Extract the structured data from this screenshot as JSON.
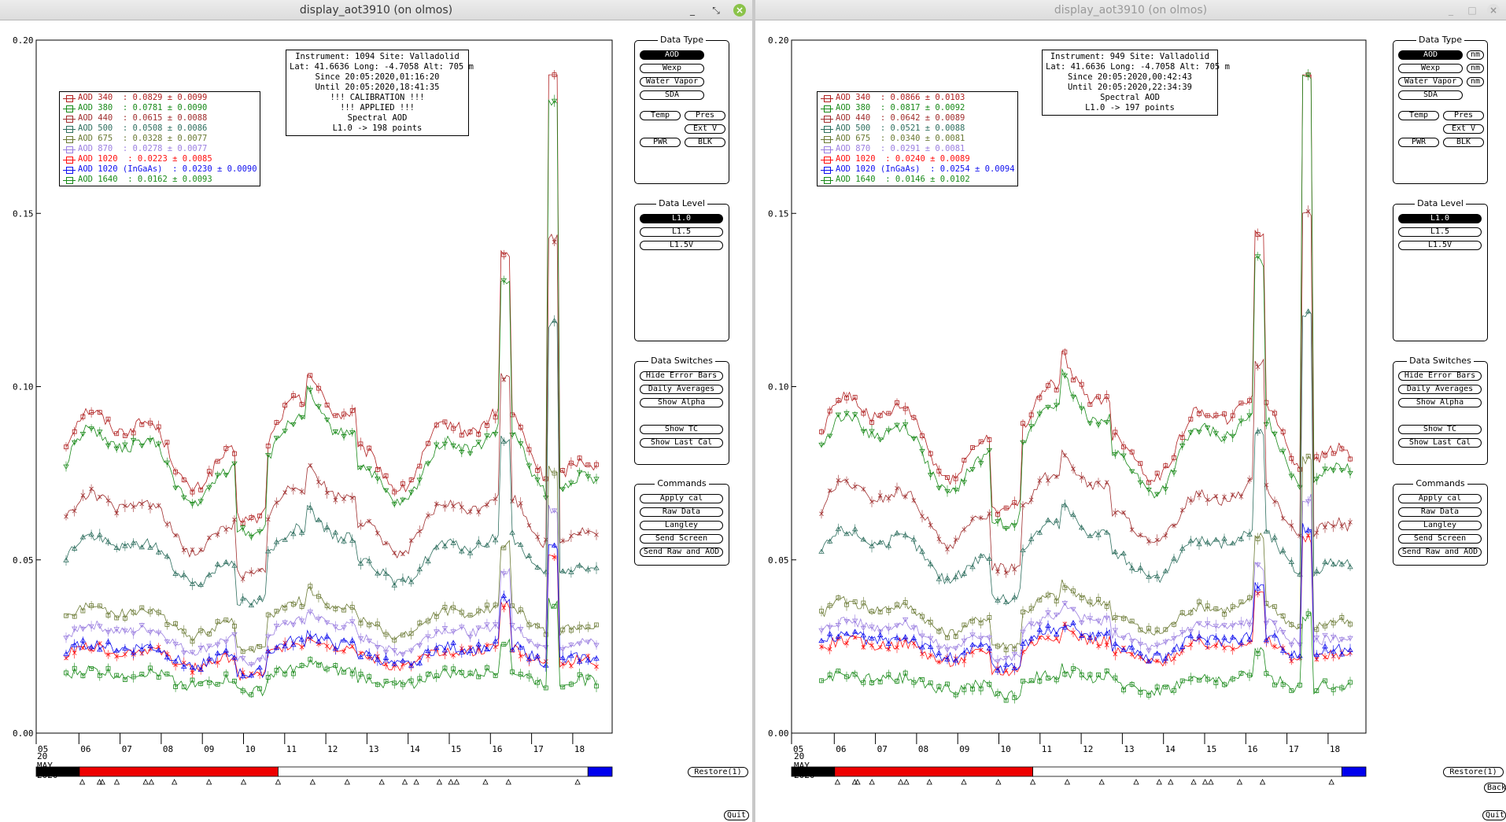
{
  "colors": {
    "aod340": "#b02020",
    "aod380": "#1a8a1a",
    "aod440": "#a03030",
    "aod500": "#2f6f5f",
    "aod675": "#6b7a35",
    "aod870": "#9b7fe0",
    "aod1020": "#ff1010",
    "aod1020ingaas": "#1010ee",
    "aod1640": "#1a8a1a",
    "timebar_black": "#000000",
    "timebar_red": "#ee0000",
    "timebar_blue": "#0000ee"
  },
  "left": {
    "title": "display_aot3910 (on olmos)",
    "window_buttons": [
      "_",
      "⤡",
      "×"
    ],
    "yticks": [
      "0.20",
      "0.15",
      "0.10",
      "0.05",
      "0.00"
    ],
    "xticks": [
      "05",
      "06",
      "07",
      "08",
      "09",
      "10",
      "11",
      "12",
      "13",
      "14",
      "15",
      "16",
      "17",
      "18"
    ],
    "date_label": "20\nMAY\n2020",
    "info": [
      "Instrument: 1094 Site: Valladolid",
      "Lat: 41.6636 Long: -4.7058 Alt: 705 m",
      "Since 20:05:2020,01:16:20",
      "Until 20:05:2020,18:41:35",
      "!!! CALIBRATION !!!",
      "!!!   APPLIED   !!!",
      "Spectral AOD",
      "L1.0 -> 198 points"
    ],
    "legend": [
      {
        "label": "AOD 340  : 0.0829 ± 0.0099",
        "color": "#b02020"
      },
      {
        "label": "AOD 380  : 0.0781 ± 0.0090",
        "color": "#1a8a1a"
      },
      {
        "label": "AOD 440  : 0.0615 ± 0.0088",
        "color": "#a03030"
      },
      {
        "label": "AOD 500  : 0.0508 ± 0.0086",
        "color": "#2f6f5f"
      },
      {
        "label": "AOD 675  : 0.0328 ± 0.0077",
        "color": "#6b7a35"
      },
      {
        "label": "AOD 870  : 0.0278 ± 0.0077",
        "color": "#9b7fe0"
      },
      {
        "label": "AOD 1020  : 0.0223 ± 0.0085",
        "color": "#ff1010"
      },
      {
        "label": "AOD 1020 (InGaAs)  : 0.0230 ± 0.0090",
        "color": "#1010ee"
      },
      {
        "label": "AOD 1640  : 0.0162 ± 0.0093",
        "color": "#1a8a1a"
      }
    ],
    "restore": "Restore(1)",
    "quit": "Quit"
  },
  "right": {
    "title": "display_aot3910 (on olmos)",
    "window_buttons": [
      "_",
      "□",
      "×"
    ],
    "yticks": [
      "0.20",
      "0.15",
      "0.10",
      "0.05",
      "0.00"
    ],
    "xticks": [
      "05",
      "06",
      "07",
      "08",
      "09",
      "10",
      "11",
      "12",
      "13",
      "14",
      "15",
      "16",
      "17",
      "18"
    ],
    "date_label": "20\nMAY\n2020",
    "info": [
      "Instrument: 949 Site: Valladolid",
      "Lat: 41.6636 Long: -4.7058 Alt: 705 m",
      "Since 20:05:2020,00:42:43",
      "Until 20:05:2020,22:34:39",
      "Spectral AOD",
      "L1.0 -> 197 points"
    ],
    "legend": [
      {
        "label": "AOD 340  : 0.0866 ± 0.0103",
        "color": "#b02020"
      },
      {
        "label": "AOD 380  : 0.0817 ± 0.0092",
        "color": "#1a8a1a"
      },
      {
        "label": "AOD 440  : 0.0642 ± 0.0089",
        "color": "#a03030"
      },
      {
        "label": "AOD 500  : 0.0521 ± 0.0088",
        "color": "#2f6f5f"
      },
      {
        "label": "AOD 675  : 0.0340 ± 0.0081",
        "color": "#6b7a35"
      },
      {
        "label": "AOD 870  : 0.0291 ± 0.0081",
        "color": "#9b7fe0"
      },
      {
        "label": "AOD 1020  : 0.0240 ± 0.0089",
        "color": "#ff1010"
      },
      {
        "label": "AOD 1020 (InGaAs)  : 0.0254 ± 0.0094",
        "color": "#1010ee"
      },
      {
        "label": "AOD 1640  : 0.0146 ± 0.0102",
        "color": "#1a8a1a"
      }
    ],
    "restore": "Restore(1)",
    "back": "Back",
    "quit": "Quit"
  },
  "panels": {
    "data_type": {
      "title": "Data Type",
      "buttons": [
        "AOD",
        "Wexp",
        "Water Vapor",
        "SDA",
        "Temp",
        "Pres",
        "Ext V",
        "PWR",
        "BLK"
      ],
      "nm": "nm"
    },
    "data_level": {
      "title": "Data Level",
      "buttons": [
        "L1.0",
        "L1.5",
        "L1.5V"
      ]
    },
    "data_switches": {
      "title": "Data Switches",
      "buttons": [
        "Hide Error Bars",
        "Daily Averages",
        "Show Alpha",
        "Show TC",
        "Show Last Cal"
      ]
    },
    "commands": {
      "title": "Commands",
      "buttons": [
        "Apply cal",
        "Raw Data",
        "Langley",
        "Send Screen",
        "Send Raw and AOD"
      ]
    }
  },
  "chart_data": [
    {
      "type": "line",
      "title": "",
      "xlabel": "",
      "ylabel": "",
      "ylim": [
        0,
        0.2
      ],
      "x_range_days": [
        "05",
        "18"
      ],
      "series": [
        {
          "name": "AOD 340",
          "mean": 0.0829,
          "std": 0.0099
        },
        {
          "name": "AOD 380",
          "mean": 0.0781,
          "std": 0.009
        },
        {
          "name": "AOD 440",
          "mean": 0.0615,
          "std": 0.0088
        },
        {
          "name": "AOD 500",
          "mean": 0.0508,
          "std": 0.0086
        },
        {
          "name": "AOD 675",
          "mean": 0.0328,
          "std": 0.0077
        },
        {
          "name": "AOD 870",
          "mean": 0.0278,
          "std": 0.0077
        },
        {
          "name": "AOD 1020",
          "mean": 0.0223,
          "std": 0.0085
        },
        {
          "name": "AOD 1020 (InGaAs)",
          "mean": 0.023,
          "std": 0.009
        },
        {
          "name": "AOD 1640",
          "mean": 0.0162,
          "std": 0.0093
        }
      ]
    },
    {
      "type": "line",
      "title": "",
      "xlabel": "",
      "ylabel": "",
      "ylim": [
        0,
        0.2
      ],
      "x_range_days": [
        "05",
        "18"
      ],
      "series": [
        {
          "name": "AOD 340",
          "mean": 0.0866,
          "std": 0.0103
        },
        {
          "name": "AOD 380",
          "mean": 0.0817,
          "std": 0.0092
        },
        {
          "name": "AOD 440",
          "mean": 0.0642,
          "std": 0.0089
        },
        {
          "name": "AOD 500",
          "mean": 0.0521,
          "std": 0.0088
        },
        {
          "name": "AOD 675",
          "mean": 0.034,
          "std": 0.0081
        },
        {
          "name": "AOD 870",
          "mean": 0.0291,
          "std": 0.0081
        },
        {
          "name": "AOD 1020",
          "mean": 0.024,
          "std": 0.0089
        },
        {
          "name": "AOD 1020 (InGaAs)",
          "mean": 0.0254,
          "std": 0.0094
        },
        {
          "name": "AOD 1640",
          "mean": 0.0146,
          "std": 0.0102
        }
      ]
    }
  ]
}
